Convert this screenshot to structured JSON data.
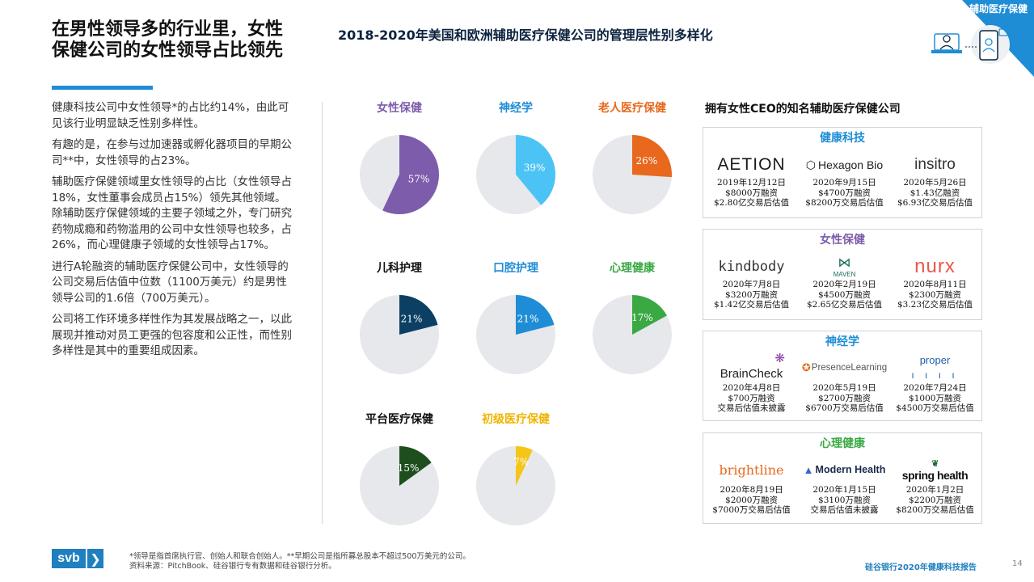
{
  "corner_tag": "辅助医疗保健",
  "page_title": "在男性领导多的行业里，女性保健公司的女性领导占比领先",
  "left_paragraphs": [
    "健康科技公司中女性领导*的占比约14%，由此可见该行业明显缺乏性别多样性。",
    "有趣的是，在参与过加速器或孵化器项目的早期公司**中，女性领导的占23%。",
    "辅助医疗保健领域里女性领导的占比（女性领导占18%，女性董事会成员占15%）领先其他领域。除辅助医疗保健领域的主要子领域之外，专门研究药物成瘾和药物滥用的公司中女性领导也较多，占26%，而心理健康子领域的女性领导占17%。",
    "进行A轮融资的辅助医疗保健公司中，女性领导的公司交易后估值中位数（1100万美元）约是男性领导公司的1.6倍（700万美元）。",
    "公司将工作环境多样性作为其发展战略之一，以此展现并推动对员工更强的包容度和公正性，而性别多样性是其中的重要组成因素。"
  ],
  "chart_data": {
    "type": "pie",
    "title": "2018-2020年美国和欧洲辅助医疗保健公司的管理层性别多样化",
    "unit": "%",
    "colors": {
      "track": "#e6e8eb"
    },
    "charts": [
      {
        "label": "女性保健",
        "value": 57,
        "value_label": "57%",
        "color": "#7d5cab",
        "label_color": "#7d5cab"
      },
      {
        "label": "神经学",
        "value": 39,
        "value_label": "39%",
        "color": "#4cc3f5",
        "label_color": "#1f8dd6"
      },
      {
        "label": "老人医疗保健",
        "value": 26,
        "value_label": "26%",
        "color": "#e8681e",
        "label_color": "#e8681e"
      },
      {
        "label": "儿科护理",
        "value": 21,
        "value_label": "21%",
        "color": "#0b4063",
        "label_color": "#111111"
      },
      {
        "label": "口腔护理",
        "value": 21,
        "value_label": "21%",
        "color": "#1f8dd6",
        "label_color": "#1f8dd6"
      },
      {
        "label": "心理健康",
        "value": 17,
        "value_label": "17%",
        "color": "#3aa843",
        "label_color": "#3aa843"
      },
      {
        "label": "平台医疗保健",
        "value": 15,
        "value_label": "15%",
        "color": "#1e4d1e",
        "label_color": "#111111"
      },
      {
        "label": "初级医疗保健",
        "value": 7,
        "value_label": "7%",
        "color": "#f5c518",
        "label_color": "#f0b400"
      }
    ]
  },
  "companies_title": "拥有女性CEO的知名辅助医疗保健公司",
  "company_groups": [
    {
      "heading": "健康科技",
      "color": "#1f8dd6",
      "items": [
        {
          "logo": "AETION",
          "date": "2019年12月12日",
          "funding": "$8000万融资",
          "valuation": "$2.80亿交易后估值"
        },
        {
          "logo": "Hexagon Bio",
          "date": "2020年9月15日",
          "funding": "$4700万融资",
          "valuation": "$8200万交易后估值"
        },
        {
          "logo": "insitro",
          "date": "2020年5月26日",
          "funding": "$1.43亿融资",
          "valuation": "$6.93亿交易后估值"
        }
      ]
    },
    {
      "heading": "女性保健",
      "color": "#7d5cab",
      "items": [
        {
          "logo": "kindbody",
          "date": "2020年7月8日",
          "funding": "$3200万融资",
          "valuation": "$1.42亿交易后估值"
        },
        {
          "logo": "MAVEN",
          "date": "2020年2月19日",
          "funding": "$4500万融资",
          "valuation": "$2.65亿交易后估值"
        },
        {
          "logo": "nurx",
          "date": "2020年8月11日",
          "funding": "$2300万融资",
          "valuation": "$3.23亿交易后估值"
        }
      ]
    },
    {
      "heading": "神经学",
      "color": "#1f8dd6",
      "items": [
        {
          "logo": "BrainCheck",
          "date": "2020年4月8日",
          "funding": "$700万融资",
          "valuation": "交易后估值未披露"
        },
        {
          "logo": "PresenceLearning",
          "date": "2020年5月19日",
          "funding": "$2700万融资",
          "valuation": "$6700万交易后估值"
        },
        {
          "logo": "proper",
          "date": "2020年7月24日",
          "funding": "$1000万融资",
          "valuation": "$4500万交易后估值"
        }
      ]
    },
    {
      "heading": "心理健康",
      "color": "#3aa843",
      "items": [
        {
          "logo": "brightline",
          "date": "2020年8月19日",
          "funding": "$2000万融资",
          "valuation": "$7000万交易后估值"
        },
        {
          "logo": "Modern Health",
          "date": "2020年1月15日",
          "funding": "$3100万融资",
          "valuation": "交易后估值未披露"
        },
        {
          "logo": "spring health",
          "date": "2020年1月2日",
          "funding": "$2200万融资",
          "valuation": "$8200万交易后估值"
        }
      ]
    }
  ],
  "footnote_1": "*领导是指首席执行官、创始人和联合创始人。**早期公司是指所募总股本不超过500万美元的公司。",
  "footnote_2": "资料来源：PitchBook、硅谷银行专有数据和硅谷银行分析。",
  "svb_logo": "svb",
  "svb_chevron": "❯",
  "report_name": "硅谷银行2020年健康科技报告",
  "page_number": "14"
}
